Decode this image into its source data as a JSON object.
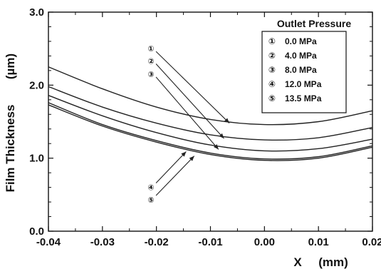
{
  "chart_data": {
    "type": "line",
    "title": "",
    "xlabel": "X",
    "xlabel_unit": "(mm)",
    "ylabel": "Film Thickness",
    "ylabel_unit": "(µm)",
    "xlim": [
      -0.04,
      0.02
    ],
    "ylim": [
      0.0,
      3.0
    ],
    "x_ticks": [
      -0.04,
      -0.03,
      -0.02,
      -0.01,
      0.0,
      0.01,
      0.02
    ],
    "x_tick_labels": [
      "-0.04",
      "-0.03",
      "-0.02",
      "-0.01",
      "0.00",
      "0.01",
      "0.02"
    ],
    "y_ticks": [
      0.0,
      1.0,
      2.0,
      3.0
    ],
    "y_tick_labels": [
      "0.0",
      "1.0",
      "2.0",
      "3.0"
    ],
    "grid": false,
    "legend": {
      "title": "Outlet Pressure",
      "placement": "top-right",
      "entries": [
        {
          "marker": "①",
          "label": "0.0 MPa"
        },
        {
          "marker": "②",
          "label": "4.0 MPa"
        },
        {
          "marker": "③",
          "label": "8.0 MPa"
        },
        {
          "marker": "④",
          "label": "12.0 MPa"
        },
        {
          "marker": "⑤",
          "label": "13.5 MPa"
        }
      ]
    },
    "series": [
      {
        "name": "0.0 MPa",
        "marker": "①",
        "x": [
          -0.04,
          -0.03,
          -0.02,
          -0.01,
          0.0,
          0.01,
          0.02
        ],
        "y": [
          2.25,
          1.95,
          1.7,
          1.53,
          1.46,
          1.5,
          1.65
        ]
      },
      {
        "name": "4.0 MPa",
        "marker": "②",
        "x": [
          -0.04,
          -0.03,
          -0.02,
          -0.01,
          0.0,
          0.01,
          0.02
        ],
        "y": [
          1.98,
          1.7,
          1.48,
          1.32,
          1.25,
          1.28,
          1.42
        ]
      },
      {
        "name": "8.0 MPa",
        "marker": "③",
        "x": [
          -0.04,
          -0.03,
          -0.02,
          -0.01,
          0.0,
          0.01,
          0.02
        ],
        "y": [
          1.86,
          1.58,
          1.35,
          1.18,
          1.1,
          1.13,
          1.26
        ]
      },
      {
        "name": "12.0 MPa",
        "marker": "④",
        "x": [
          -0.04,
          -0.03,
          -0.02,
          -0.01,
          0.0,
          0.01,
          0.02
        ],
        "y": [
          1.76,
          1.46,
          1.24,
          1.07,
          0.99,
          1.02,
          1.17
        ]
      },
      {
        "name": "13.5 MPa",
        "marker": "⑤",
        "x": [
          -0.04,
          -0.03,
          -0.02,
          -0.01,
          0.0,
          0.01,
          0.02
        ],
        "y": [
          1.73,
          1.44,
          1.22,
          1.05,
          0.97,
          1.0,
          1.15
        ]
      }
    ],
    "annotations": [
      {
        "text": "①",
        "series": 0,
        "x": -0.021,
        "y": 2.52,
        "arrow_to_x": -0.0065,
        "arrow_to_y": 1.48
      },
      {
        "text": "②",
        "series": 1,
        "x": -0.021,
        "y": 2.35,
        "arrow_to_x": -0.0075,
        "arrow_to_y": 1.27
      },
      {
        "text": "③",
        "series": 2,
        "x": -0.021,
        "y": 2.17,
        "arrow_to_x": -0.0085,
        "arrow_to_y": 1.12
      },
      {
        "text": "④",
        "series": 3,
        "x": -0.021,
        "y": 0.62,
        "arrow_to_x": -0.0145,
        "arrow_to_y": 1.09
      },
      {
        "text": "⑤",
        "series": 4,
        "x": -0.021,
        "y": 0.45,
        "arrow_to_x": -0.013,
        "arrow_to_y": 1.03
      }
    ]
  }
}
